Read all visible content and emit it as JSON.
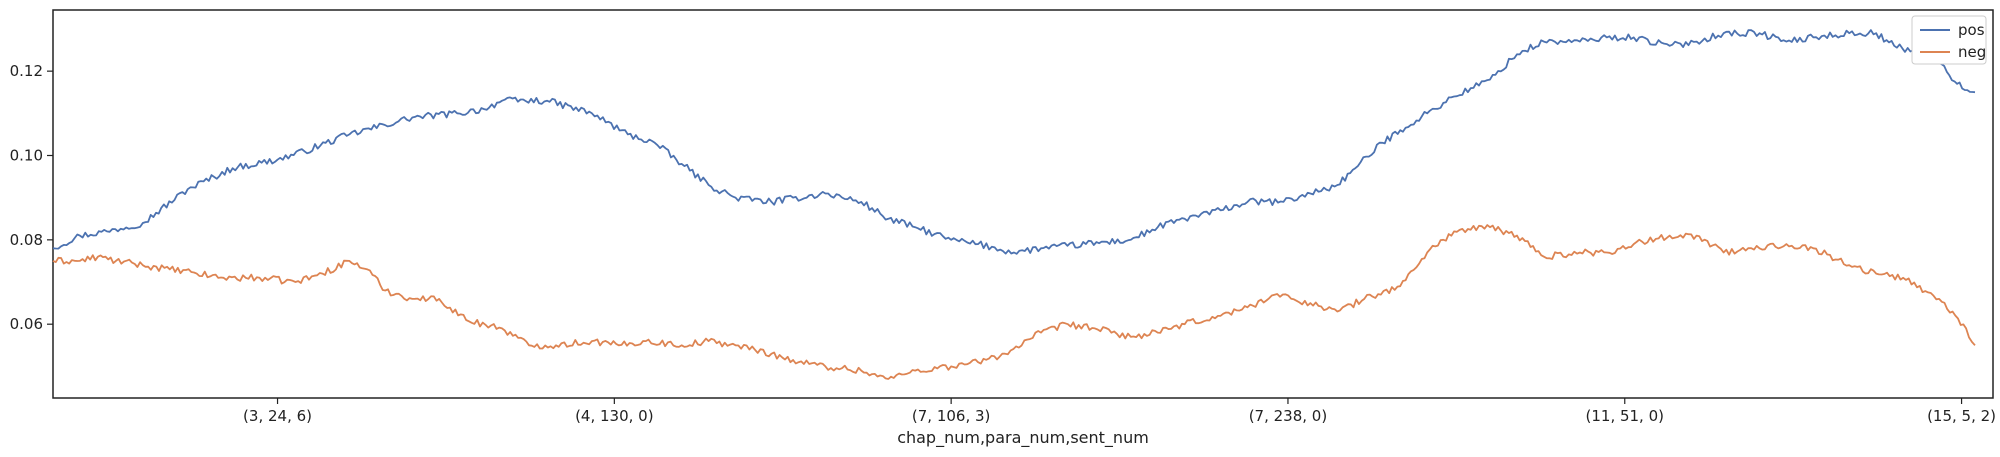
{
  "chart_data": {
    "type": "line",
    "title": "",
    "xlabel": "chap_num,para_num,sent_num",
    "ylabel": "",
    "xlim": [
      0,
      2160
    ],
    "ylim": [
      0.0425,
      0.1345
    ],
    "x_ticks": [
      {
        "pos": 250,
        "label": "(3, 24, 6)"
      },
      {
        "pos": 625,
        "label": "(4, 130, 0)"
      },
      {
        "pos": 1000,
        "label": "(7, 106, 3)"
      },
      {
        "pos": 1375,
        "label": "(7, 238, 0)"
      },
      {
        "pos": 1750,
        "label": "(11, 51, 0)"
      },
      {
        "pos": 2125,
        "label": "(15, 5, 2)"
      }
    ],
    "y_ticks": [
      {
        "value": 0.06,
        "label": "0.06"
      },
      {
        "value": 0.08,
        "label": "0.08"
      },
      {
        "value": 0.1,
        "label": "0.10"
      },
      {
        "value": 0.12,
        "label": "0.12"
      }
    ],
    "grid": false,
    "legend_position": "top-right",
    "series": [
      {
        "name": "pos",
        "color": "#4c72b0",
        "x": [
          0,
          30,
          60,
          100,
          150,
          200,
          250,
          280,
          330,
          400,
          450,
          480,
          500,
          550,
          600,
          640,
          670,
          700,
          730,
          760,
          800,
          860,
          900,
          930,
          960,
          1000,
          1030,
          1070,
          1100,
          1150,
          1200,
          1230,
          1260,
          1300,
          1330,
          1370,
          1400,
          1430,
          1450,
          1480,
          1500,
          1530,
          1560,
          1600,
          1630,
          1660,
          1700,
          1730,
          1760,
          1800,
          1830,
          1860,
          1900,
          1930,
          1960,
          2000,
          2030,
          2050,
          2080,
          2100,
          2120,
          2140
        ],
        "y": [
          0.078,
          0.081,
          0.082,
          0.084,
          0.092,
          0.097,
          0.099,
          0.101,
          0.105,
          0.109,
          0.11,
          0.111,
          0.113,
          0.113,
          0.11,
          0.105,
          0.103,
          0.098,
          0.093,
          0.09,
          0.089,
          0.091,
          0.089,
          0.085,
          0.083,
          0.08,
          0.079,
          0.077,
          0.078,
          0.079,
          0.08,
          0.083,
          0.085,
          0.087,
          0.089,
          0.089,
          0.091,
          0.093,
          0.097,
          0.103,
          0.106,
          0.11,
          0.114,
          0.118,
          0.124,
          0.127,
          0.127,
          0.128,
          0.128,
          0.126,
          0.127,
          0.129,
          0.129,
          0.127,
          0.128,
          0.129,
          0.129,
          0.126,
          0.124,
          0.122,
          0.117,
          0.115
        ]
      },
      {
        "name": "neg",
        "color": "#dd8452",
        "x": [
          0,
          30,
          50,
          70,
          100,
          130,
          160,
          190,
          230,
          270,
          300,
          330,
          350,
          370,
          400,
          430,
          460,
          500,
          530,
          560,
          600,
          630,
          660,
          700,
          730,
          760,
          800,
          830,
          860,
          900,
          930,
          960,
          1000,
          1030,
          1060,
          1100,
          1130,
          1160,
          1200,
          1230,
          1260,
          1300,
          1330,
          1360,
          1400,
          1430,
          1460,
          1500,
          1530,
          1560,
          1600,
          1630,
          1660,
          1700,
          1730,
          1760,
          1800,
          1830,
          1860,
          1900,
          1930,
          1960,
          2000,
          2030,
          2060,
          2100,
          2130,
          2140
        ],
        "y": [
          0.075,
          0.075,
          0.076,
          0.075,
          0.074,
          0.073,
          0.072,
          0.071,
          0.071,
          0.07,
          0.072,
          0.075,
          0.073,
          0.068,
          0.066,
          0.066,
          0.061,
          0.059,
          0.055,
          0.055,
          0.056,
          0.055,
          0.056,
          0.055,
          0.056,
          0.055,
          0.053,
          0.051,
          0.05,
          0.049,
          0.047,
          0.049,
          0.05,
          0.051,
          0.053,
          0.058,
          0.06,
          0.059,
          0.057,
          0.058,
          0.06,
          0.062,
          0.064,
          0.067,
          0.065,
          0.063,
          0.066,
          0.069,
          0.077,
          0.082,
          0.083,
          0.081,
          0.076,
          0.077,
          0.077,
          0.079,
          0.081,
          0.081,
          0.077,
          0.078,
          0.079,
          0.078,
          0.074,
          0.072,
          0.071,
          0.066,
          0.059,
          0.055
        ]
      }
    ]
  }
}
